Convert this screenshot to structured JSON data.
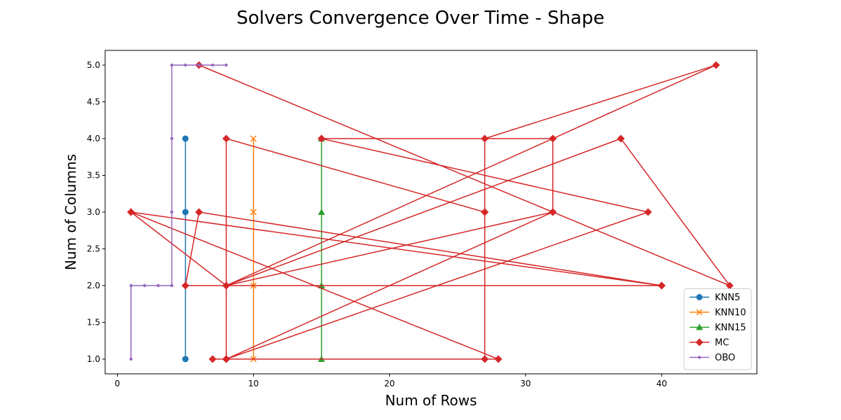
{
  "chart_data": {
    "type": "line",
    "title": "Solvers Convergence Over Time - Shape",
    "xlabel": "Num of Rows",
    "ylabel": "Num of Columns",
    "xlim": [
      -0.9,
      47.0
    ],
    "ylim": [
      0.8,
      5.2
    ],
    "xticks": [
      0,
      10,
      20,
      30,
      40
    ],
    "xtick_labels": [
      "0",
      "10",
      "20",
      "30",
      "40"
    ],
    "yticks": [
      1.0,
      1.5,
      2.0,
      2.5,
      3.0,
      3.5,
      4.0,
      4.5,
      5.0
    ],
    "ytick_labels": [
      "1.0",
      "1.5",
      "2.0",
      "2.5",
      "3.0",
      "3.5",
      "4.0",
      "4.5",
      "5.0"
    ],
    "grid": false,
    "legend_position": "bottom-right",
    "series": [
      {
        "name": "KNN5",
        "color": "#1f77b4",
        "marker": "circle",
        "x": [
          5,
          5,
          5
        ],
        "y": [
          1,
          3,
          4
        ]
      },
      {
        "name": "KNN10",
        "color": "#ff7f0e",
        "marker": "x",
        "x": [
          10,
          10,
          10,
          10
        ],
        "y": [
          1,
          2,
          3,
          4
        ]
      },
      {
        "name": "KNN15",
        "color": "#2ca02c",
        "marker": "triangle",
        "x": [
          15,
          15,
          15,
          15
        ],
        "y": [
          1,
          2,
          3,
          4
        ]
      },
      {
        "name": "MC",
        "color": "#d62728",
        "marker": "diamond",
        "x": [
          7,
          8,
          8,
          27,
          27,
          44,
          8,
          1,
          40,
          5,
          6,
          40,
          1,
          28,
          8,
          39,
          15,
          15,
          32,
          32,
          8,
          37,
          45,
          6,
          32,
          8,
          8,
          27,
          27
        ],
        "y": [
          1,
          1,
          4,
          3,
          4,
          5,
          2,
          3,
          2,
          2,
          3,
          2,
          3,
          1,
          1,
          3,
          4,
          4,
          4,
          3,
          2,
          4,
          2,
          5,
          3,
          1,
          1,
          1,
          3
        ]
      },
      {
        "name": "OBO",
        "color": "#9467bd",
        "marker": "point",
        "x": [
          1,
          1,
          2,
          3,
          4,
          4,
          4,
          4,
          5,
          6,
          7,
          8
        ],
        "y": [
          1,
          2,
          2,
          2,
          2,
          3,
          4,
          5,
          5,
          5,
          5,
          5
        ]
      }
    ]
  }
}
